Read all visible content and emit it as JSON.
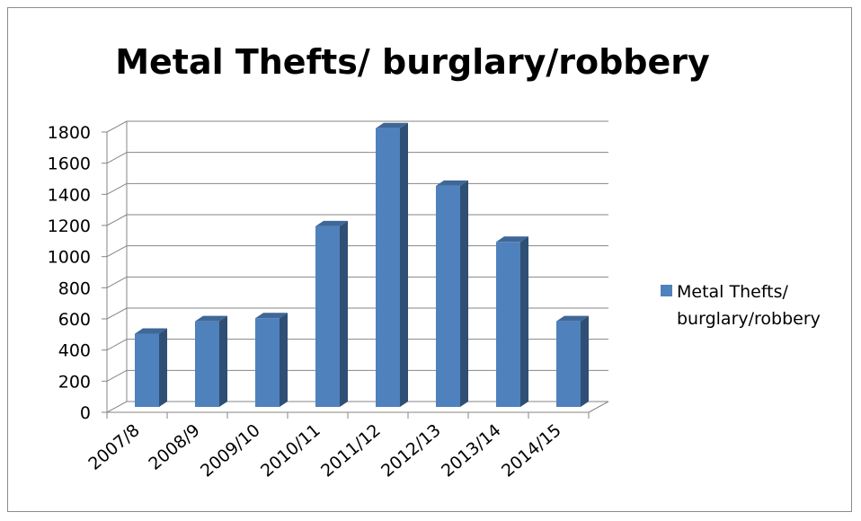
{
  "chart_data": {
    "type": "bar",
    "title": "Metal Thefts/ burglary/robbery",
    "categories": [
      "2007/8",
      "2008/9",
      "2009/10",
      "2010/11",
      "2011/12",
      "2012/13",
      "2013/14",
      "2014/15"
    ],
    "series": [
      {
        "name": "Metal Thefts/ burglary/robbery",
        "values": [
          470,
          550,
          570,
          1160,
          1790,
          1420,
          1060,
          550
        ],
        "color": "#4f81bd"
      }
    ],
    "ylim": [
      0,
      1800
    ],
    "yticks": [
      "0",
      "200",
      "400",
      "600",
      "800",
      "1000",
      "1200",
      "1400",
      "1600",
      "1800"
    ],
    "legend_lines": [
      "Metal Thefts/",
      "burglary/robbery"
    ],
    "legend_position": "right",
    "grid": true,
    "style": "3d-column"
  }
}
